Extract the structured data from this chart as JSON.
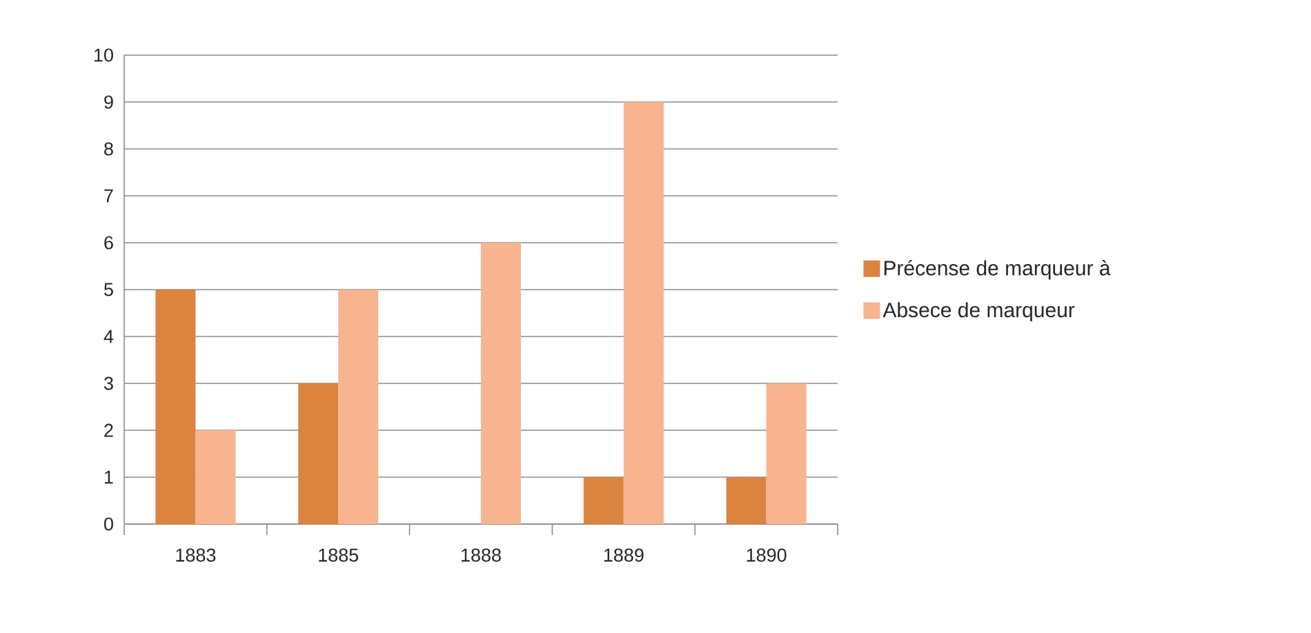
{
  "chart_data": {
    "type": "bar",
    "categories": [
      "1883",
      "1885",
      "1888",
      "1889",
      "1890"
    ],
    "series": [
      {
        "name": "Précense de marqueur à",
        "color": "#db843f",
        "values": [
          5,
          3,
          0,
          1,
          1
        ]
      },
      {
        "name": "Absece de marqueur",
        "color": "#f8b48e",
        "values": [
          2,
          5,
          6,
          9,
          3
        ]
      }
    ],
    "ylim": [
      0,
      10
    ],
    "yticks": [
      0,
      1,
      2,
      3,
      4,
      5,
      6,
      7,
      8,
      9,
      10
    ],
    "grid": "y",
    "legend": "right"
  }
}
